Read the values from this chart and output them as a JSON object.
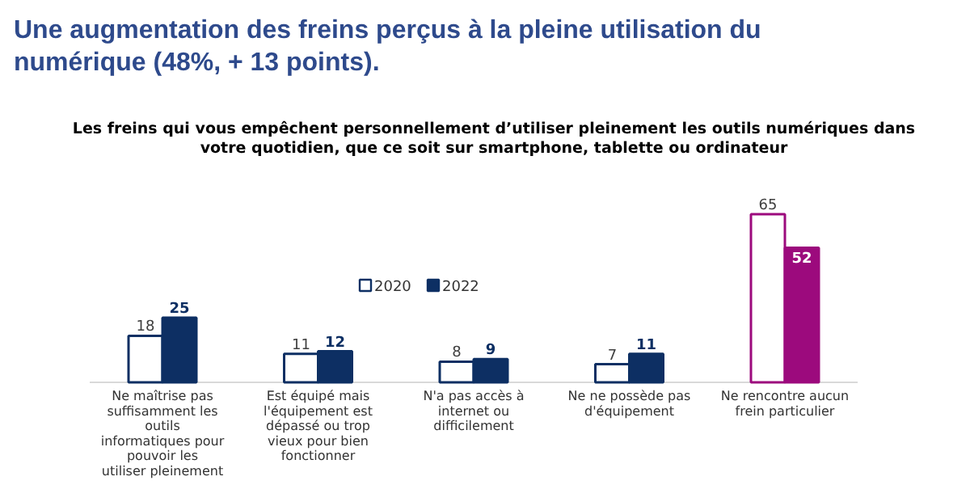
{
  "chart_data": {
    "type": "bar",
    "title": "Une augmentation des freins perçus à la pleine utilisation du numérique (48%, + 13 points).",
    "subtitle": "Les freins qui vous empêchent personnellement d’utiliser pleinement les outils numériques dans votre quotidien, que ce soit sur smartphone, tablette ou ordinateur",
    "categories": [
      "Ne maîtrise pas suffisamment les outils informatiques pour pouvoir les utiliser pleinement",
      "Est équipé mais l'équipement est dépassé ou trop vieux pour bien fonctionner",
      "N'a pas accès à internet ou difficilement",
      "Ne ne possède pas d'équipement",
      "Ne rencontre aucun frein particulier"
    ],
    "series": [
      {
        "name": "2020",
        "color": "#ffffff",
        "colors": [
          "#ffffff",
          "#ffffff",
          "#ffffff",
          "#ffffff",
          "#ffffff"
        ],
        "values": [
          18,
          11,
          8,
          7,
          65
        ]
      },
      {
        "name": "2022",
        "color": "#0d2f63",
        "colors": [
          "#0d2f63",
          "#0d2f63",
          "#0d2f63",
          "#0d2f63",
          "#9c0a7d"
        ],
        "values": [
          25,
          12,
          9,
          11,
          52
        ]
      }
    ],
    "data_labels": true,
    "legend": "top",
    "grid": false
  }
}
